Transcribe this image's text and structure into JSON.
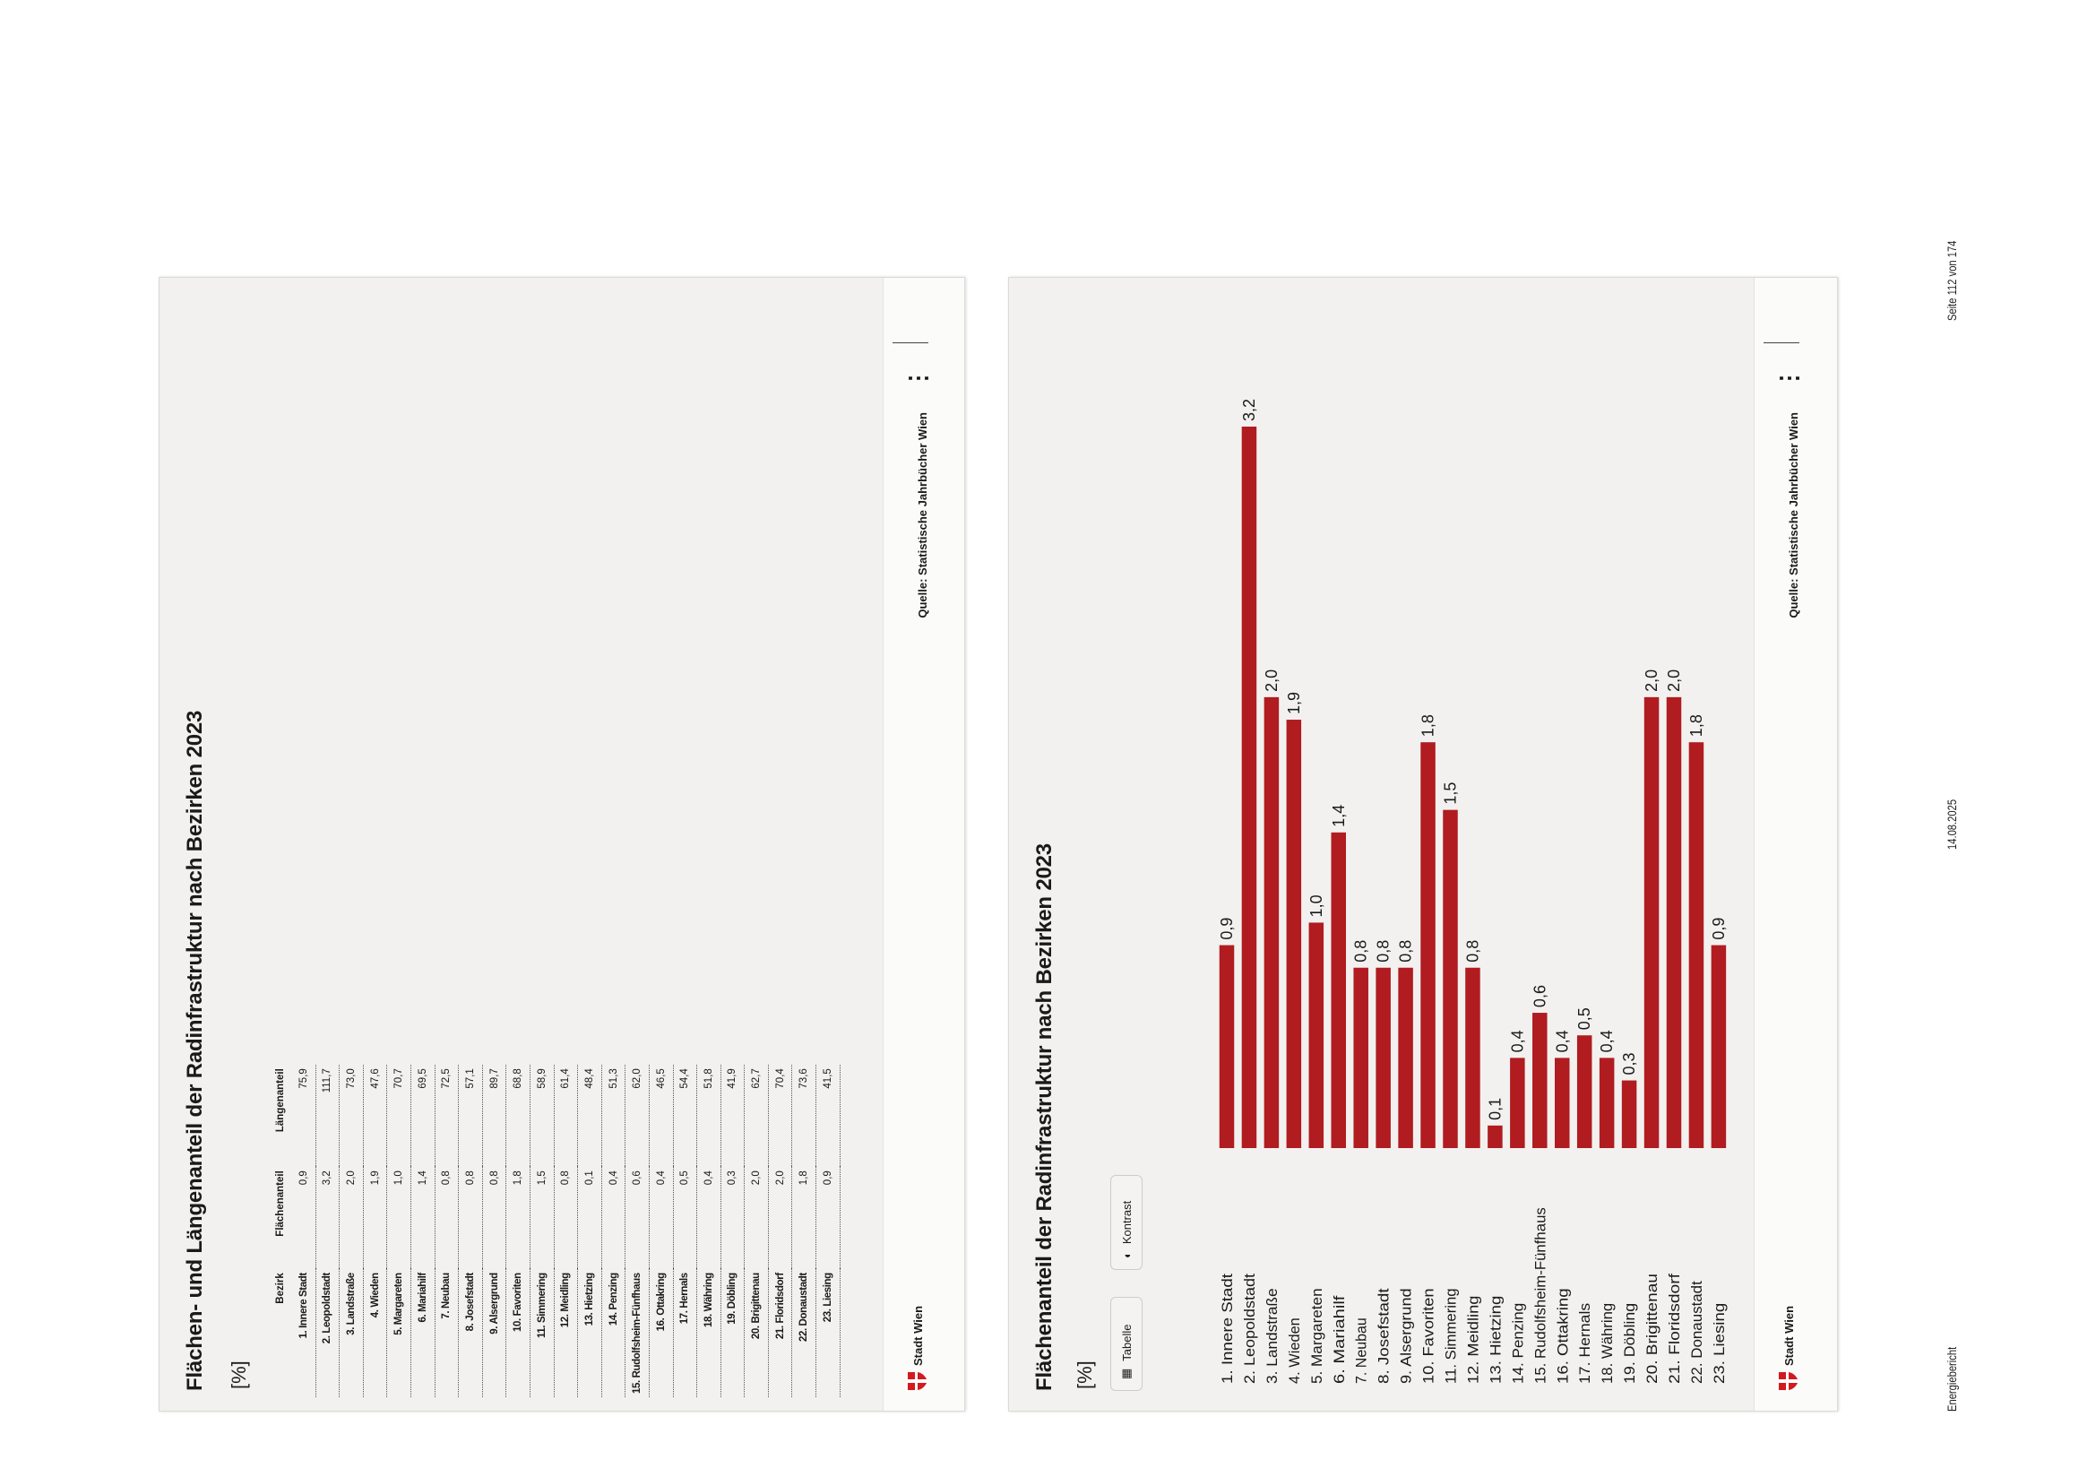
{
  "table_panel": {
    "title": "Flächen- und Längenanteil der Radinfrastruktur nach Bezirken 2023",
    "unit": "[%]",
    "columns": [
      "Bezirk",
      "Flächenanteil",
      "Längenanteil"
    ],
    "rows": [
      [
        "1. Innere Stadt",
        "0,9",
        "75,9"
      ],
      [
        "2. Leopoldstadt",
        "3,2",
        "111,7"
      ],
      [
        "3. Landstraße",
        "2,0",
        "73,0"
      ],
      [
        "4. Wieden",
        "1,9",
        "47,6"
      ],
      [
        "5. Margareten",
        "1,0",
        "70,7"
      ],
      [
        "6. Mariahilf",
        "1,4",
        "69,5"
      ],
      [
        "7. Neubau",
        "0,8",
        "72,5"
      ],
      [
        "8. Josefstadt",
        "0,8",
        "57,1"
      ],
      [
        "9. Alsergrund",
        "0,8",
        "89,7"
      ],
      [
        "10. Favoriten",
        "1,8",
        "68,8"
      ],
      [
        "11. Simmering",
        "1,5",
        "58,9"
      ],
      [
        "12. Meidling",
        "0,8",
        "61,4"
      ],
      [
        "13. Hietzing",
        "0,1",
        "48,4"
      ],
      [
        "14. Penzing",
        "0,4",
        "51,3"
      ],
      [
        "15. Rudolfsheim-Fünfhaus",
        "0,6",
        "62,0"
      ],
      [
        "16. Ottakring",
        "0,4",
        "46,5"
      ],
      [
        "17. Hernals",
        "0,5",
        "54,4"
      ],
      [
        "18. Währing",
        "0,4",
        "51,8"
      ],
      [
        "19. Döbling",
        "0,3",
        "41,9"
      ],
      [
        "20. Brigittenau",
        "2,0",
        "62,7"
      ],
      [
        "21. Floridsdorf",
        "2,0",
        "70,4"
      ],
      [
        "22. Donaustadt",
        "1,8",
        "73,6"
      ],
      [
        "23. Liesing",
        "0,9",
        "41,5"
      ]
    ],
    "source": "Quelle: Statistische Jahrbücher Wien",
    "logo_text": "Stadt Wien",
    "menu_icon": "more-icon"
  },
  "chart_panel": {
    "buttons": {
      "table": "Tabelle",
      "contrast": "Kontrast"
    },
    "source": "Quelle: Statistische Jahrbücher Wien",
    "logo_text": "Stadt Wien"
  },
  "chart_data": {
    "type": "bar",
    "title": "Flächenanteil der Radinfrastruktur nach Bezirken 2023",
    "ylabel": "[%]",
    "xlabel": "",
    "categories": [
      "1. Innere Stadt",
      "2. Leopoldstadt",
      "3. Landstraße",
      "4. Wieden",
      "5. Margareten",
      "6. Mariahilf",
      "7. Neubau",
      "8. Josefstadt",
      "9. Alsergrund",
      "10. Favoriten",
      "11. Simmering",
      "12. Meidling",
      "13. Hietzing",
      "14. Penzing",
      "15. Rudolfsheim-Fünfhaus",
      "16. Ottakring",
      "17. Hernals",
      "18. Währing",
      "19. Döbling",
      "20. Brigittenau",
      "21. Floridsdorf",
      "22. Donaustadt",
      "23. Liesing"
    ],
    "values": [
      0.9,
      3.2,
      2.0,
      1.9,
      1.0,
      1.4,
      0.8,
      0.8,
      0.8,
      1.8,
      1.5,
      0.8,
      0.1,
      0.4,
      0.6,
      0.4,
      0.5,
      0.4,
      0.3,
      2.0,
      2.0,
      1.8,
      0.9
    ],
    "data_labels": [
      "0,9",
      "3,2",
      "2,0",
      "1,9",
      "1,0",
      "1,4",
      "0,8",
      "0,8",
      "0,8",
      "1,8",
      "1,5",
      "0,8",
      "0,1",
      "0,4",
      "0,6",
      "0,4",
      "0,5",
      "0,4",
      "0,3",
      "2,0",
      "2,0",
      "1,8",
      "0,9"
    ],
    "ylim": [
      0,
      3.2
    ],
    "grid": false,
    "color": "#b01c20"
  },
  "footer": {
    "left": "Energiebericht",
    "center": "14.08.2025",
    "right": "Seite 112 von 174"
  }
}
